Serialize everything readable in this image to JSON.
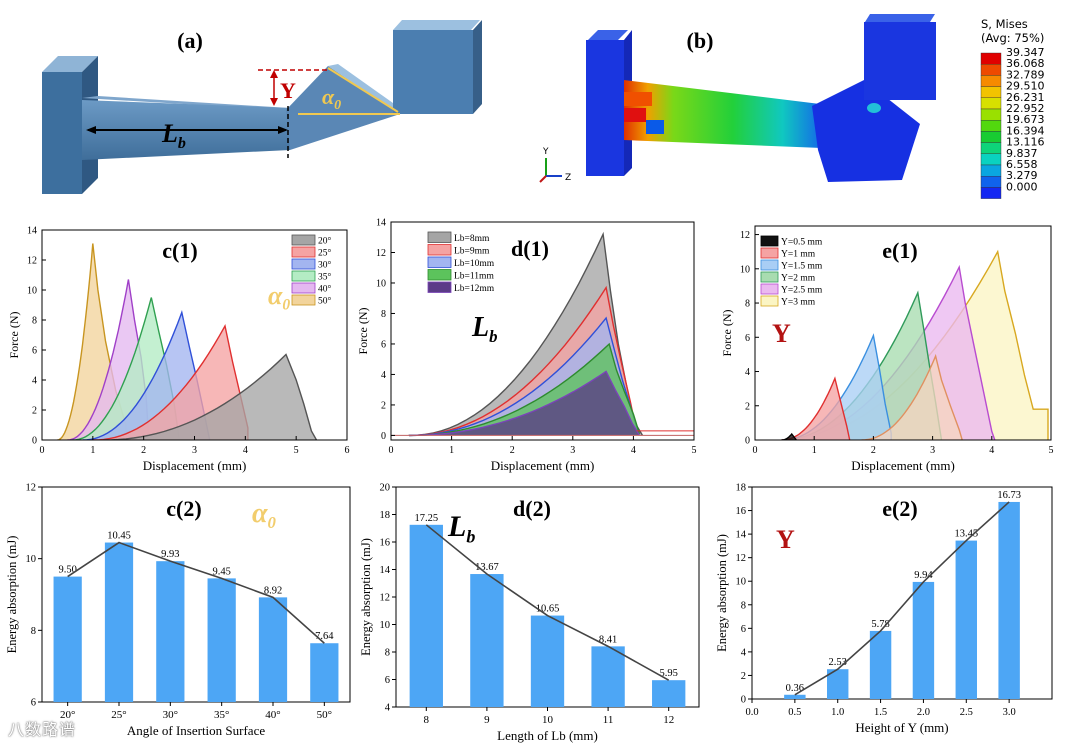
{
  "panels": {
    "a": {
      "label": "(a)",
      "dim_y": "Y",
      "dim_alpha": "α",
      "dim_alpha_sub": "0",
      "dim_lb": "L",
      "dim_lb_sub": "b"
    },
    "b": {
      "label": "(b)",
      "legend_title": [
        "S, Mises",
        "(Avg: 75%)"
      ],
      "legend_values": [
        "39.347",
        "36.068",
        "32.789",
        "29.510",
        "26.231",
        "22.952",
        "19.673",
        "16.394",
        "13.116",
        "9.837",
        "6.558",
        "3.279",
        "0.000"
      ],
      "legend_colors": [
        "#e00000",
        "#ee4a00",
        "#f68a00",
        "#f2c300",
        "#d7e000",
        "#9ae000",
        "#52d80e",
        "#18cc32",
        "#0ed47a",
        "#0ad2c0",
        "#0aa6e0",
        "#1063ec",
        "#1427f2"
      ],
      "axis_y": "Y",
      "axis_z": "Z"
    }
  },
  "colors": {
    "bar": "#4da6f5",
    "mark_gold": "#f2cd6d",
    "mark_red": "#b31212"
  },
  "watermark": "八数路谱",
  "chart_data": [
    {
      "id": "c1",
      "type": "area",
      "title": "c(1)",
      "annotation": "α",
      "annotation_sub": "0",
      "xlabel": "Displacement (mm)",
      "ylabel": "Force (N)",
      "xlim": [
        0,
        6
      ],
      "ylim": [
        0,
        14
      ],
      "xticks": [
        0,
        1,
        2,
        3,
        4,
        5,
        6
      ],
      "yticks": [
        0,
        2,
        4,
        6,
        8,
        10,
        12,
        14
      ],
      "series": [
        {
          "name": "20°",
          "fill": "#a5a5a5",
          "stroke": "#555555",
          "start": 1.2,
          "peak": [
            4.8,
            5.7
          ],
          "drops": [
            [
              5.0,
              4.0
            ],
            [
              5.15,
              2.4
            ],
            [
              5.3,
              0.6
            ],
            [
              5.4,
              0.0
            ]
          ]
        },
        {
          "name": "25°",
          "fill": "#f5a3a3",
          "stroke": "#e03030",
          "start": 1.0,
          "peak": [
            3.6,
            7.6
          ],
          "drops": [
            [
              3.75,
              5.2
            ],
            [
              3.9,
              3.0
            ],
            [
              4.05,
              0.8
            ],
            [
              4.05,
              0.0
            ]
          ]
        },
        {
          "name": "30°",
          "fill": "#a3b5f0",
          "stroke": "#3050d8",
          "start": 0.8,
          "peak": [
            2.75,
            8.5
          ],
          "drops": [
            [
              2.9,
              6.2
            ],
            [
              3.05,
              4.0
            ],
            [
              3.2,
              1.6
            ],
            [
              3.3,
              0.0
            ]
          ]
        },
        {
          "name": "35°",
          "fill": "#b4ecc4",
          "stroke": "#2fa050",
          "start": 0.6,
          "peak": [
            2.15,
            9.5
          ],
          "drops": [
            [
              2.3,
              7.2
            ],
            [
              2.45,
              5.0
            ],
            [
              2.6,
              2.4
            ],
            [
              2.7,
              0.0
            ]
          ]
        },
        {
          "name": "40°",
          "fill": "#e4b8f0",
          "stroke": "#a040c8",
          "start": 0.5,
          "peak": [
            1.7,
            10.7
          ],
          "drops": [
            [
              1.82,
              8.0
            ],
            [
              1.95,
              5.5
            ],
            [
              2.05,
              2.8
            ],
            [
              2.1,
              0.0
            ]
          ]
        },
        {
          "name": "50°",
          "fill": "#f2d49c",
          "stroke": "#c89520",
          "start": 0.3,
          "peak": [
            1.0,
            13.1
          ],
          "drops": [
            [
              1.1,
              10.0
            ],
            [
              1.25,
              6.6
            ],
            [
              1.45,
              3.3
            ],
            [
              1.65,
              1.0
            ],
            [
              1.65,
              0.0
            ]
          ]
        }
      ]
    },
    {
      "id": "d1",
      "type": "area",
      "title": "d(1)",
      "annotation": "L",
      "annotation_sub": "b",
      "xlabel": "Displacement (mm)",
      "ylabel": "Force (N)",
      "xlim": [
        0,
        5
      ],
      "ylim": [
        -0.3,
        14
      ],
      "xticks": [
        0,
        1,
        2,
        3,
        4,
        5
      ],
      "yticks": [
        0,
        2,
        4,
        6,
        8,
        10,
        12,
        14
      ],
      "series": [
        {
          "name": "Lb=8mm",
          "fill": "#a5a5a5",
          "stroke": "#555555",
          "start": 0.3,
          "peak": [
            3.5,
            13.2
          ],
          "drops": [
            [
              3.62,
              9.5
            ],
            [
              3.75,
              6.0
            ],
            [
              3.9,
              3.0
            ],
            [
              4.0,
              1.0
            ],
            [
              4.15,
              0.0
            ]
          ]
        },
        {
          "name": "Lb=9mm",
          "fill": "#f5a3a3",
          "stroke": "#e03030",
          "start": 0.3,
          "peak": [
            3.55,
            9.7
          ],
          "drops": [
            [
              3.67,
              7.2
            ],
            [
              3.8,
              4.8
            ],
            [
              3.95,
              2.2
            ],
            [
              4.05,
              0.3
            ]
          ]
        },
        {
          "name": "Lb=10mm",
          "fill": "#a3b5f0",
          "stroke": "#3050d8",
          "start": 0.3,
          "peak": [
            3.55,
            7.7
          ],
          "drops": [
            [
              3.68,
              5.7
            ],
            [
              3.82,
              3.6
            ],
            [
              3.96,
              1.8
            ],
            [
              4.08,
              0.2
            ]
          ]
        },
        {
          "name": "Lb=11mm",
          "fill": "#5cc35c",
          "stroke": "#2e8b2e",
          "start": 0.3,
          "peak": [
            3.6,
            6.0
          ],
          "drops": [
            [
              3.72,
              4.3
            ],
            [
              3.85,
              2.9
            ],
            [
              4.0,
              1.4
            ],
            [
              4.1,
              0.1
            ]
          ]
        },
        {
          "name": "Lb=12mm",
          "fill": "#5b3b87",
          "stroke": "#7a44b8",
          "start": 0.3,
          "peak": [
            3.55,
            4.2
          ],
          "drops": [
            [
              3.7,
              3.0
            ],
            [
              3.85,
              1.9
            ],
            [
              3.98,
              0.8
            ],
            [
              4.1,
              0.0
            ]
          ]
        }
      ]
    },
    {
      "id": "e1",
      "type": "area",
      "title": "e(1)",
      "annotation": "Y",
      "annotation_sub": "",
      "xlabel": "Displacement (mm)",
      "ylabel": "Force (N)",
      "xlim": [
        0,
        5
      ],
      "ylim": [
        0,
        12.5
      ],
      "xticks": [
        0,
        1,
        2,
        3,
        4,
        5
      ],
      "yticks": [
        0,
        2,
        4,
        6,
        8,
        10,
        12
      ],
      "series": [
        {
          "name": "Y=0.5 mm",
          "fill": "#111111",
          "stroke": "#000000",
          "start": 0.45,
          "peak": [
            0.62,
            0.35
          ],
          "drops": [
            [
              0.7,
              0.0
            ]
          ]
        },
        {
          "name": "Y=1 mm",
          "fill": "#f5a3a3",
          "stroke": "#e03030",
          "start": 0.45,
          "peak": [
            1.35,
            3.6
          ],
          "drops": [
            [
              1.45,
              2.2
            ],
            [
              1.55,
              0.8
            ],
            [
              1.6,
              0.0
            ]
          ]
        },
        {
          "name": "Y=1.5 mm",
          "fill": "#a9cef5",
          "stroke": "#3a8fe0",
          "start": 0.45,
          "peak": [
            2.0,
            6.1
          ],
          "drops": [
            [
              2.1,
              4.2
            ],
            [
              2.2,
              2.1
            ],
            [
              2.3,
              0.4
            ],
            [
              2.3,
              0.0
            ]
          ]
        },
        {
          "name": "Y=2 mm",
          "fill": "#a8dcb0",
          "stroke": "#2f9a5a",
          "start": 0.45,
          "peak": [
            2.75,
            8.6
          ],
          "drops": [
            [
              2.85,
              6.5
            ],
            [
              2.95,
              4.3
            ],
            [
              3.05,
              2.2
            ],
            [
              3.15,
              0.0
            ]
          ]
        },
        {
          "name": "Y=2.5 mm",
          "fill": "#eab9f0",
          "stroke": "#b84cd0",
          "start": 0.45,
          "peak": [
            3.45,
            10.1
          ],
          "drops": [
            [
              3.55,
              8.0
            ],
            [
              3.7,
              5.5
            ],
            [
              3.85,
              3.0
            ],
            [
              4.0,
              0.5
            ],
            [
              4.05,
              0.0
            ]
          ]
        },
        {
          "name": "Y=3 mm",
          "fill": "#fbf5c4",
          "stroke": "#d8a820",
          "start": 0.45,
          "peak": [
            4.1,
            11.0
          ],
          "drops": [
            [
              4.22,
              8.7
            ],
            [
              4.4,
              6.2
            ],
            [
              4.55,
              3.8
            ],
            [
              4.7,
              1.8
            ],
            [
              4.95,
              1.8
            ],
            [
              4.95,
              0.0
            ]
          ]
        }
      ],
      "extra_traces": [
        {
          "fill": "#f5d5c0",
          "stroke": "#e09060",
          "start": 1.8,
          "peak": [
            3.05,
            4.9
          ],
          "drops": [
            [
              3.15,
              3.5
            ],
            [
              3.3,
              2.0
            ],
            [
              3.45,
              0.6
            ],
            [
              3.5,
              0.0
            ]
          ]
        }
      ]
    },
    {
      "id": "c2",
      "type": "bar",
      "title": "c(2)",
      "annotation": "α",
      "annotation_sub": "0",
      "xlabel": "Angle of Insertion Surface",
      "ylabel": "Energy absorption (mJ)",
      "categories": [
        "20°",
        "25°",
        "30°",
        "35°",
        "40°",
        "50°"
      ],
      "values": [
        9.5,
        10.45,
        9.93,
        9.45,
        8.92,
        7.64
      ],
      "labels": [
        "9.50",
        "10.45",
        "9.93",
        "9.45",
        "8.92",
        "7.64"
      ],
      "ylim": [
        6,
        12
      ],
      "yticks": [
        6,
        8,
        10,
        12
      ]
    },
    {
      "id": "d2",
      "type": "bar",
      "title": "d(2)",
      "annotation": "L",
      "annotation_sub": "b",
      "xlabel": "Length of Lb (mm)",
      "ylabel": "Energy absorption (mJ)",
      "categories": [
        "8",
        "9",
        "10",
        "11",
        "12"
      ],
      "values": [
        17.25,
        13.67,
        10.65,
        8.41,
        5.95
      ],
      "labels": [
        "17.25",
        "13.67",
        "10.65",
        "8.41",
        "5.95"
      ],
      "ylim": [
        4,
        20
      ],
      "yticks": [
        4,
        6,
        8,
        10,
        12,
        14,
        16,
        18,
        20
      ]
    },
    {
      "id": "e2",
      "type": "bar",
      "title": "e(2)",
      "annotation": "Y",
      "annotation_sub": "",
      "xlabel": "Height of Y (mm)",
      "ylabel": "Energy absorption (mJ)",
      "categories": [
        "0.5",
        "1.0",
        "1.5",
        "2.0",
        "2.5",
        "3.0"
      ],
      "values": [
        0.36,
        2.53,
        5.78,
        9.94,
        13.45,
        16.73
      ],
      "labels": [
        "0.36",
        "2.53",
        "5.78",
        "9.94",
        "13.45",
        "16.73"
      ],
      "ylim": [
        0,
        18
      ],
      "xlim": [
        0.0,
        3.0
      ],
      "xticks": [
        "0.0",
        "0.5",
        "1.0",
        "1.5",
        "2.0",
        "2.5",
        "3.0"
      ],
      "yticks": [
        0,
        2,
        4,
        6,
        8,
        10,
        12,
        14,
        16,
        18
      ]
    }
  ]
}
